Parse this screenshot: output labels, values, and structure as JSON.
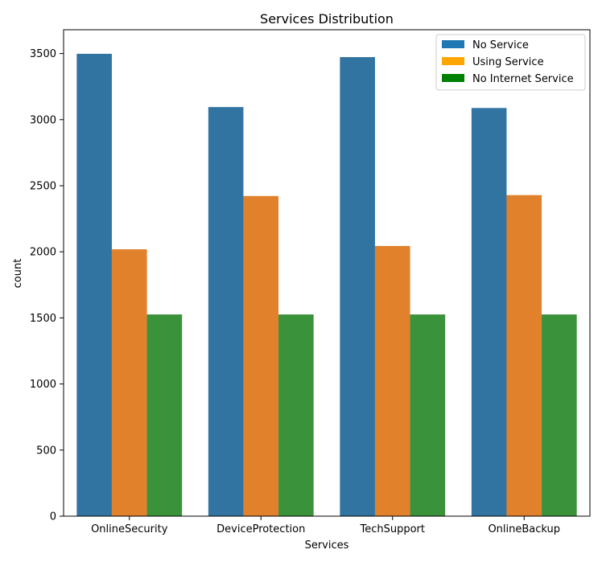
{
  "chart_data": {
    "type": "bar",
    "title": "Services Distribution",
    "xlabel": "Services",
    "ylabel": "count",
    "categories": [
      "OnlineSecurity",
      "DeviceProtection",
      "TechSupport",
      "OnlineBackup"
    ],
    "series": [
      {
        "name": "No Service",
        "color": "#3274a1",
        "values": [
          3498,
          3095,
          3473,
          3088
        ]
      },
      {
        "name": "Using Service",
        "color": "#e1812c",
        "values": [
          2019,
          2422,
          2044,
          2429
        ]
      },
      {
        "name": "No Internet Service",
        "color": "#3a923a",
        "values": [
          1526,
          1526,
          1526,
          1526
        ]
      }
    ],
    "legend_colors": [
      "#1f77b4",
      "#ffa500",
      "#008000"
    ],
    "ylim": [
      0,
      3680
    ],
    "yticks": [
      0,
      500,
      1000,
      1500,
      2000,
      2500,
      3000,
      3500
    ],
    "grid": false,
    "legend_position": "top-right"
  }
}
